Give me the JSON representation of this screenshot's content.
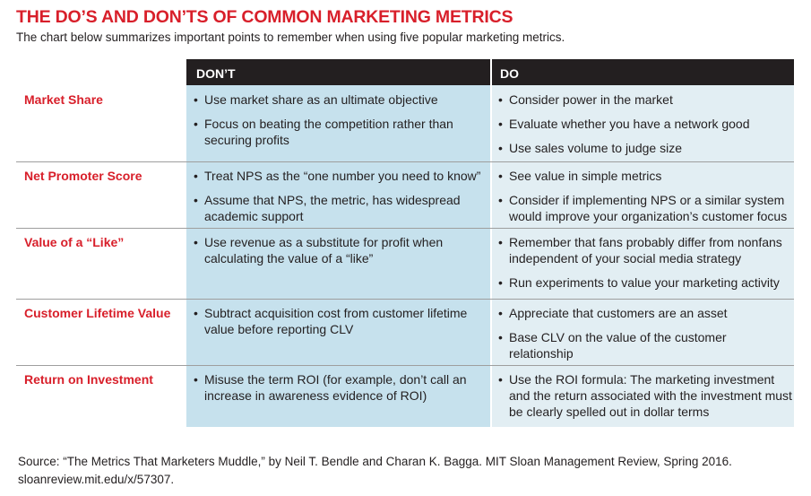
{
  "title": "THE DO’S AND DON’TS OF COMMON MARKETING METRICS",
  "subtitle": "The chart below summarizes important points to remember when using five popular marketing metrics.",
  "columns": {
    "dont": "DON’T",
    "do": "DO"
  },
  "rows": [
    {
      "metric": "Market Share",
      "dont": [
        "Use market share as an ultimate objective",
        "Focus on beating the competition rather than securing profits"
      ],
      "do": [
        "Consider power in the market",
        "Evaluate whether you have a network good",
        "Use sales volume to judge size"
      ]
    },
    {
      "metric": "Net Promoter Score",
      "dont": [
        "Treat NPS as the “one number you need to know”",
        "Assume that NPS, the metric, has widespread academic support"
      ],
      "do": [
        "See value in simple metrics",
        "Consider if implementing NPS or a similar system would improve your organization’s customer focus"
      ]
    },
    {
      "metric": "Value of a “Like”",
      "dont": [
        "Use revenue as a substitute for profit when calculating the value of a “like”"
      ],
      "do": [
        "Remember that fans probably differ from nonfans independent of your social media strategy",
        "Run experiments to value your marketing activity"
      ]
    },
    {
      "metric": "Customer Lifetime Value",
      "dont": [
        "Subtract acquisition cost from customer lifetime value before reporting CLV"
      ],
      "do": [
        "Appreciate that customers are an asset",
        "Base CLV on the value of the customer relationship"
      ]
    },
    {
      "metric": "Return on Investment",
      "dont": [
        "Misuse the term ROI (for example, don’t call an increase in awareness evidence of ROI)"
      ],
      "do": [
        "Use the ROI formula: The marketing investment and the return associated with the investment must be clearly spelled out in dollar terms"
      ]
    }
  ],
  "source": "Source: “The Metrics That Marketers Muddle,” by Neil T. Bendle and Charan K. Bagga. MIT Sloan Management Review, Spring 2016. sloanreview.mit.edu/x/57307."
}
